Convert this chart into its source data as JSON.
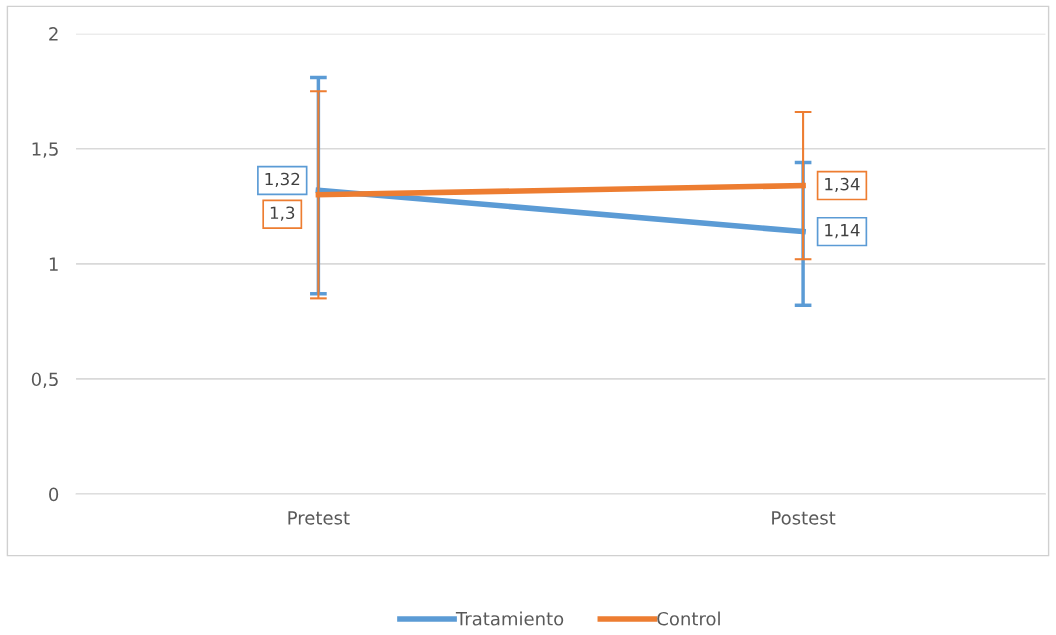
{
  "chart_data": {
    "type": "line",
    "categories": [
      "Pretest",
      "Postest"
    ],
    "series": [
      {
        "name": "Tratamiento",
        "color": "#5b9bd5",
        "values": [
          1.32,
          1.14
        ],
        "value_labels": [
          "1,32",
          "1,14"
        ],
        "errors": [
          [
            0.87,
            1.81
          ],
          [
            0.82,
            1.44
          ]
        ]
      },
      {
        "name": "Control",
        "color": "#ed7d31",
        "values": [
          1.3,
          1.34
        ],
        "value_labels": [
          "1,3",
          "1,34"
        ],
        "errors": [
          [
            0.85,
            1.75
          ],
          [
            1.02,
            1.66
          ]
        ]
      }
    ],
    "ylim": [
      0,
      2
    ],
    "yticks": [
      0,
      {
        "value": 0.5,
        "label": "0,5"
      },
      1,
      {
        "value": 1.5,
        "label": "1,5"
      },
      2
    ],
    "grid": "y",
    "legend": "bottom",
    "marker": "none",
    "line_style": "solid"
  }
}
